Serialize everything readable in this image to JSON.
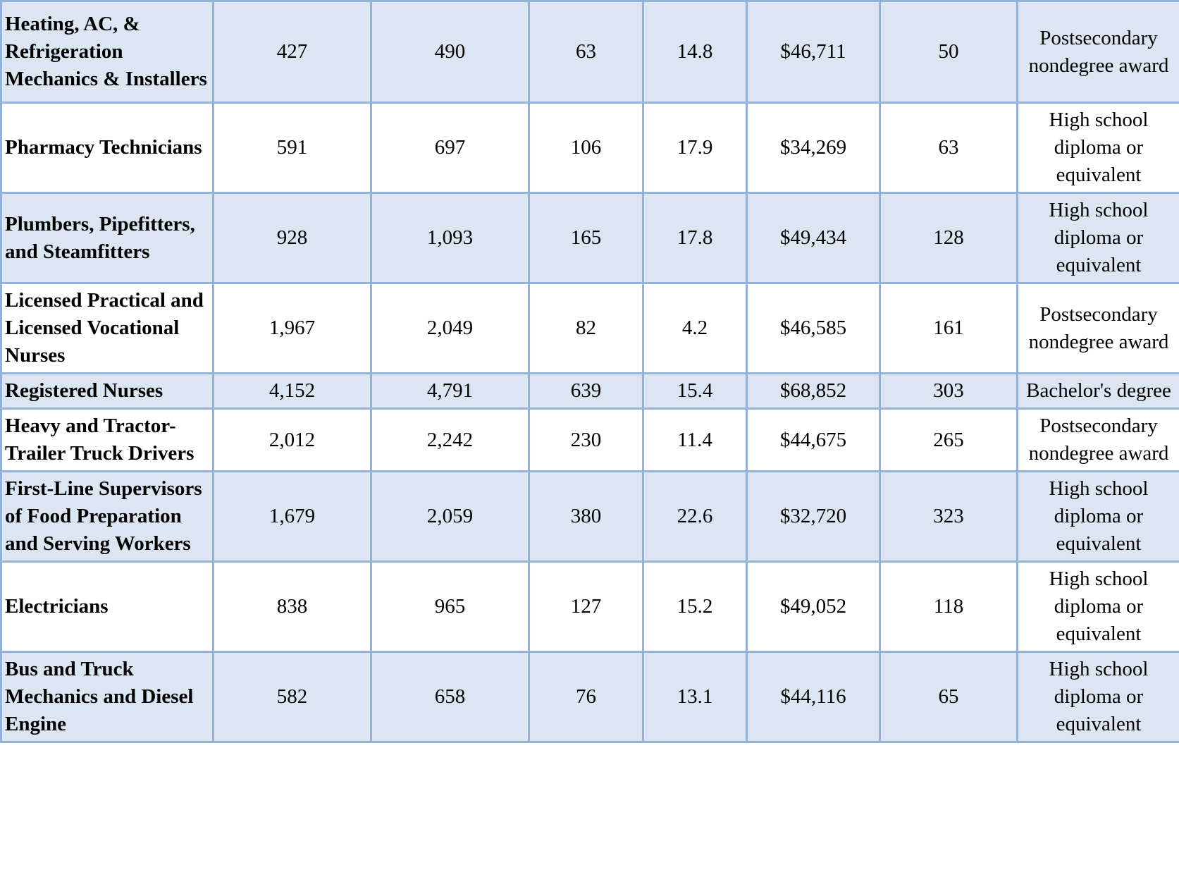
{
  "colors": {
    "row_shaded": "#dce6f3",
    "row_plain": "#ffffff",
    "border": "#95b3d7"
  },
  "table": {
    "rows": [
      {
        "occupation": "Heating, AC, & Refrigeration Mechanics & Installers",
        "values": [
          "427",
          "490",
          "63",
          "14.8",
          "$46,711",
          "50"
        ],
        "education": "Postsecondary nondegree award",
        "shaded": true
      },
      {
        "occupation": "Pharmacy Technicians",
        "values": [
          "591",
          "697",
          "106",
          "17.9",
          "$34,269",
          "63"
        ],
        "education": "High school diploma or equivalent",
        "shaded": false
      },
      {
        "occupation": "Plumbers, Pipefitters, and Steamfitters",
        "values": [
          "928",
          "1,093",
          "165",
          "17.8",
          "$49,434",
          "128"
        ],
        "education": "High school diploma or equivalent",
        "shaded": true
      },
      {
        "occupation": "Licensed Practical and Licensed Vocational Nurses",
        "values": [
          "1,967",
          "2,049",
          "82",
          "4.2",
          "$46,585",
          "161"
        ],
        "education": "Postsecondary nondegree award",
        "shaded": false
      },
      {
        "occupation": "Registered Nurses",
        "values": [
          "4,152",
          "4,791",
          "639",
          "15.4",
          "$68,852",
          "303"
        ],
        "education": "Bachelor's degree",
        "shaded": true
      },
      {
        "occupation": "Heavy and Tractor-Trailer Truck Drivers",
        "values": [
          "2,012",
          "2,242",
          "230",
          "11.4",
          "$44,675",
          "265"
        ],
        "education": "Postsecondary nondegree award",
        "shaded": false
      },
      {
        "occupation": "First-Line Supervisors of Food Preparation and Serving Workers",
        "values": [
          "1,679",
          "2,059",
          "380",
          "22.6",
          "$32,720",
          "323"
        ],
        "education": "High school diploma or equivalent",
        "shaded": true
      },
      {
        "occupation": "Electricians",
        "values": [
          "838",
          "965",
          "127",
          "15.2",
          "$49,052",
          "118"
        ],
        "education": "High school diploma or equivalent",
        "shaded": false
      },
      {
        "occupation": "Bus and Truck Mechanics and Diesel Engine",
        "values": [
          "582",
          "658",
          "76",
          "13.1",
          "$44,116",
          "65"
        ],
        "education": "High school diploma or equivalent",
        "shaded": true
      }
    ]
  }
}
